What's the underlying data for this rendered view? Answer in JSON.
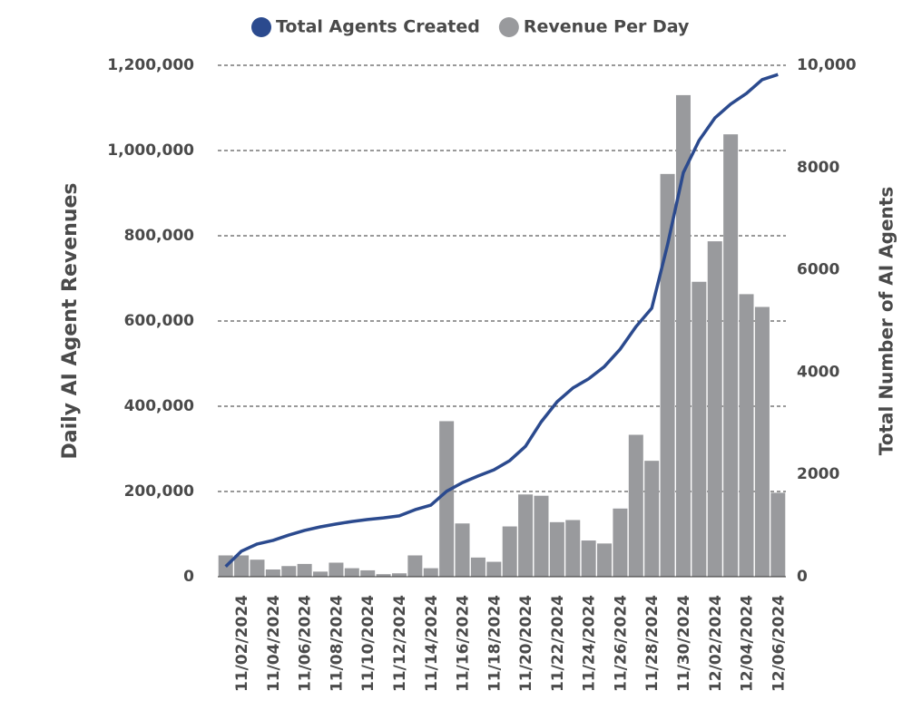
{
  "chart_data": {
    "type": "bar_line",
    "y_label": "Daily AI Agent Revenues",
    "y2_label": "Total Number of AI Agents",
    "categories": [
      null,
      "11/02/2024",
      null,
      "11/04/2024",
      null,
      "11/06/2024",
      null,
      "11/08/2024",
      null,
      "11/10/2024",
      null,
      "11/12/2024",
      null,
      "11/14/2024",
      null,
      "11/16/2024",
      null,
      "11/18/2024",
      null,
      "11/20/2024",
      null,
      "11/22/2024",
      null,
      "11/24/2024",
      null,
      "11/26/2024",
      null,
      "11/28/2024",
      null,
      "11/30/2024",
      null,
      "12/02/2024",
      null,
      "12/04/2024",
      null,
      "12/06/2024"
    ],
    "series": [
      {
        "name": "Total Agents Created",
        "color": "#2b4a8e",
        "axis": "y2",
        "kind": "line",
        "values": [
          200,
          500,
          640,
          710,
          815,
          905,
          975,
          1030,
          1080,
          1120,
          1150,
          1190,
          1310,
          1400,
          1670,
          1840,
          1970,
          2090,
          2270,
          2550,
          3030,
          3420,
          3690,
          3870,
          4110,
          4450,
          4890,
          5250,
          6490,
          7900,
          8530,
          8970,
          9240,
          9450,
          9720,
          9820
        ]
      },
      {
        "name": "Revenue Per Day",
        "color": "#999a9d",
        "kind": "bar",
        "values": [
          50000,
          50000,
          40000,
          17000,
          25000,
          30000,
          12000,
          33000,
          20000,
          15000,
          6000,
          8000,
          50000,
          20000,
          365000,
          125000,
          45000,
          35000,
          118000,
          193000,
          190000,
          128000,
          133000,
          85000,
          78000,
          160000,
          333000,
          272000,
          945000,
          1130000,
          692000,
          787000,
          1038000,
          663000,
          633000,
          197000
        ]
      }
    ],
    "ylim": [
      0,
      1200000
    ],
    "yticks": [
      0,
      {
        "value": 200000,
        "label": "200,000"
      },
      {
        "value": 400000,
        "label": "400,000"
      },
      {
        "value": 600000,
        "label": "600,000"
      },
      {
        "value": 800000,
        "label": "800,000"
      },
      {
        "value": 1000000,
        "label": "1,000,000"
      },
      {
        "value": 1200000,
        "label": "1,200,000"
      }
    ],
    "y2lim": [
      0,
      10000
    ],
    "y2ticks": [
      0,
      2000,
      4000,
      6000,
      8000,
      {
        "value": 10000,
        "label": "10,000"
      }
    ],
    "grid": true,
    "legend": "top"
  }
}
